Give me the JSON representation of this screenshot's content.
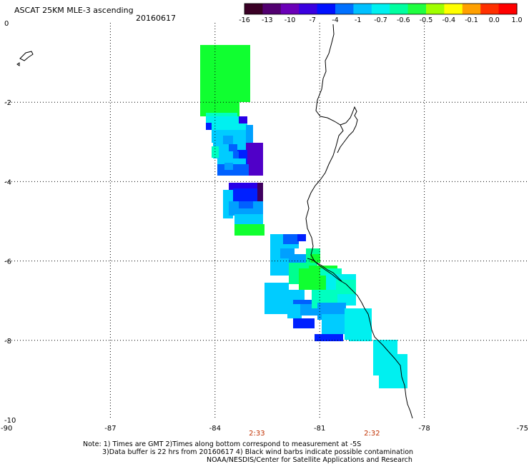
{
  "title": "ASCAT 25KM MLE-3 ascending",
  "date": "20160617",
  "colorbar": {
    "tick_labels": [
      "-16",
      "-13",
      "-10",
      "-7",
      "-4",
      "-1",
      "-0.7",
      "-0.6",
      "-0.5",
      "-0.4",
      "-0.1",
      "0.0",
      "1.0"
    ],
    "colors": [
      "#3a0025",
      "#520070",
      "#6b00b8",
      "#3a00e0",
      "#0010ff",
      "#0070ff",
      "#00c0ff",
      "#00f0f0",
      "#00ffa0",
      "#20ff40",
      "#a0ff00",
      "#ffff00",
      "#ffa000",
      "#ff3000",
      "#ff0000"
    ]
  },
  "axes": {
    "lon_labels": [
      "-90",
      "-87",
      "-84",
      "-81",
      "-78",
      "-75"
    ],
    "lat_labels": [
      "0",
      "-2",
      "-4",
      "-6",
      "-8",
      "-10"
    ],
    "lon_range": [
      -90,
      -75
    ],
    "lat_range": [
      0,
      -10
    ]
  },
  "pass_times": [
    {
      "lon": -82.8,
      "text": "2:33"
    },
    {
      "lon": -79.5,
      "text": "2:32"
    }
  ],
  "pass_time_color": "#c03000",
  "notes": [
    "Note: 1) Times are GMT 2)Times along bottom correspond to measurement at -5S",
    "3)Data buffer is 22 hrs from 20160617 4) Black wind barbs indicate possible contamination",
    "NOAA/NESDIS/Center for Satellite Applications and Research"
  ]
}
